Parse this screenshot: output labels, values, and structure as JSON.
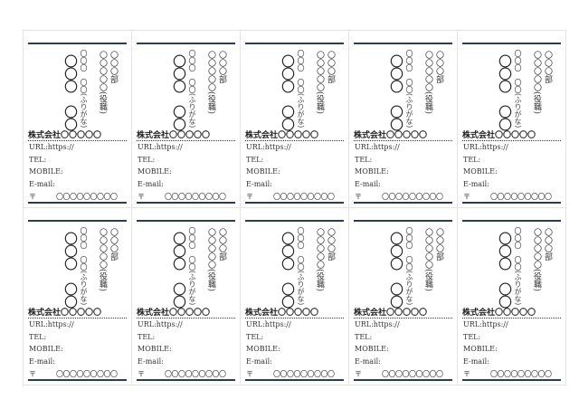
{
  "card": {
    "name": "〇〇〇　〇〇",
    "furigana": "〇〇〇　〇〇(ふりがな)",
    "title": "〇〇〇〇〇(役職)",
    "department": "〇〇〇部",
    "company": "株式会社〇〇〇〇〇",
    "url": "URL:https://",
    "tel": "TEL:",
    "mobile": "MOBILE:",
    "email": "E-mail:",
    "zip_mark": "〒",
    "address": "〇〇〇〇〇〇〇〇〇"
  },
  "layout_info": {
    "rows": 2,
    "columns": 5
  },
  "colors": {
    "accent": "#2b3a55",
    "grid": "#e4e4e4"
  }
}
